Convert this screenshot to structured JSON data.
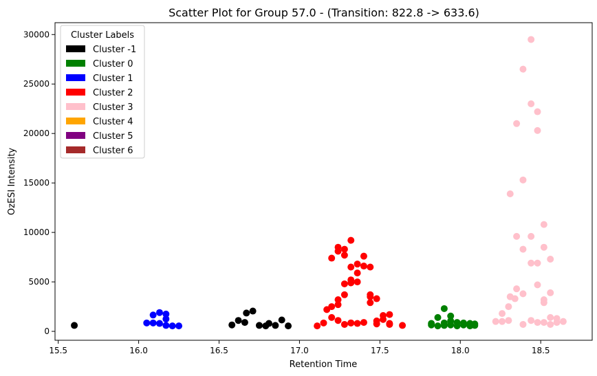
{
  "chart_data": {
    "type": "scatter",
    "title": "Scatter Plot for Group 57.0 -  (Transition: 822.8 -> 633.6)",
    "xlabel": "Retention Time",
    "ylabel": "OzESI Intensity",
    "xlim": [
      15.48,
      18.82
    ],
    "ylim": [
      -900,
      31200
    ],
    "xticks": [
      15.5,
      16.0,
      16.5,
      17.0,
      17.5,
      18.0,
      18.5
    ],
    "xtick_labels": [
      "15.5",
      "16.0",
      "16.5",
      "17.0",
      "17.5",
      "18.0",
      "18.5"
    ],
    "yticks": [
      0,
      5000,
      10000,
      15000,
      20000,
      25000,
      30000
    ],
    "ytick_labels": [
      "0",
      "5000",
      "10000",
      "15000",
      "20000",
      "25000",
      "30000"
    ],
    "grid": false,
    "legend": {
      "title": "Cluster Labels",
      "placement": "top-left"
    },
    "series": [
      {
        "name": "Cluster -1",
        "color": "#000000",
        "points": [
          [
            15.6,
            600
          ],
          [
            16.58,
            650
          ],
          [
            16.62,
            1100
          ],
          [
            16.66,
            900
          ],
          [
            16.67,
            1850
          ],
          [
            16.71,
            2050
          ],
          [
            16.75,
            600
          ],
          [
            16.79,
            550
          ],
          [
            16.81,
            800
          ],
          [
            16.85,
            600
          ],
          [
            16.89,
            1150
          ],
          [
            16.93,
            550
          ]
        ]
      },
      {
        "name": "Cluster 0",
        "color": "#008000",
        "points": [
          [
            17.82,
            650
          ],
          [
            17.82,
            800
          ],
          [
            17.86,
            550
          ],
          [
            17.86,
            1400
          ],
          [
            17.9,
            600
          ],
          [
            17.9,
            850
          ],
          [
            17.9,
            2300
          ],
          [
            17.94,
            650
          ],
          [
            17.94,
            1050
          ],
          [
            17.94,
            1550
          ],
          [
            17.98,
            550
          ],
          [
            17.98,
            900
          ],
          [
            18.02,
            650
          ],
          [
            18.02,
            850
          ],
          [
            18.06,
            550
          ],
          [
            18.06,
            800
          ],
          [
            18.09,
            600
          ],
          [
            18.09,
            750
          ]
        ]
      },
      {
        "name": "Cluster 1",
        "color": "#0000ff",
        "points": [
          [
            16.05,
            850
          ],
          [
            16.09,
            850
          ],
          [
            16.09,
            1650
          ],
          [
            16.13,
            800
          ],
          [
            16.13,
            1900
          ],
          [
            16.17,
            600
          ],
          [
            16.17,
            1250
          ],
          [
            16.17,
            1750
          ],
          [
            16.21,
            550
          ],
          [
            16.25,
            550
          ]
        ]
      },
      {
        "name": "Cluster 2",
        "color": "#ff0000",
        "points": [
          [
            17.11,
            550
          ],
          [
            17.15,
            850
          ],
          [
            17.17,
            2200
          ],
          [
            17.2,
            2500
          ],
          [
            17.2,
            7400
          ],
          [
            17.2,
            1400
          ],
          [
            17.24,
            1100
          ],
          [
            17.24,
            2700
          ],
          [
            17.24,
            3200
          ],
          [
            17.24,
            8100
          ],
          [
            17.24,
            8500
          ],
          [
            17.28,
            700
          ],
          [
            17.28,
            3700
          ],
          [
            17.28,
            4800
          ],
          [
            17.28,
            7700
          ],
          [
            17.28,
            8300
          ],
          [
            17.32,
            850
          ],
          [
            17.32,
            4900
          ],
          [
            17.32,
            5200
          ],
          [
            17.32,
            6500
          ],
          [
            17.32,
            9200
          ],
          [
            17.36,
            800
          ],
          [
            17.36,
            5000
          ],
          [
            17.36,
            5900
          ],
          [
            17.36,
            6800
          ],
          [
            17.4,
            900
          ],
          [
            17.4,
            6600
          ],
          [
            17.4,
            7600
          ],
          [
            17.44,
            2900
          ],
          [
            17.44,
            3500
          ],
          [
            17.44,
            3700
          ],
          [
            17.44,
            6500
          ],
          [
            17.48,
            750
          ],
          [
            17.48,
            1050
          ],
          [
            17.48,
            3300
          ],
          [
            17.52,
            1200
          ],
          [
            17.52,
            1600
          ],
          [
            17.56,
            700
          ],
          [
            17.56,
            800
          ],
          [
            17.56,
            1700
          ],
          [
            17.64,
            600
          ],
          [
            17.32,
            850
          ]
        ]
      },
      {
        "name": "Cluster 3",
        "color": "#ffc0cb",
        "points": [
          [
            18.22,
            1000
          ],
          [
            18.26,
            1000
          ],
          [
            18.26,
            1800
          ],
          [
            18.3,
            1100
          ],
          [
            18.3,
            2500
          ],
          [
            18.31,
            3500
          ],
          [
            18.31,
            13900
          ],
          [
            18.34,
            3300
          ],
          [
            18.35,
            4300
          ],
          [
            18.35,
            9600
          ],
          [
            18.35,
            21000
          ],
          [
            18.39,
            700
          ],
          [
            18.39,
            3800
          ],
          [
            18.39,
            8300
          ],
          [
            18.39,
            15300
          ],
          [
            18.39,
            26500
          ],
          [
            18.44,
            1100
          ],
          [
            18.44,
            6900
          ],
          [
            18.44,
            9600
          ],
          [
            18.44,
            23000
          ],
          [
            18.44,
            29500
          ],
          [
            18.48,
            900
          ],
          [
            18.48,
            4700
          ],
          [
            18.48,
            6900
          ],
          [
            18.48,
            20300
          ],
          [
            18.48,
            22200
          ],
          [
            18.52,
            900
          ],
          [
            18.52,
            2900
          ],
          [
            18.52,
            3200
          ],
          [
            18.52,
            8500
          ],
          [
            18.52,
            10800
          ],
          [
            18.56,
            700
          ],
          [
            18.56,
            1400
          ],
          [
            18.56,
            3900
          ],
          [
            18.56,
            7300
          ],
          [
            18.6,
            900
          ],
          [
            18.6,
            1300
          ],
          [
            18.64,
            1000
          ]
        ]
      },
      {
        "name": "Cluster 4",
        "color": "#ffa500",
        "points": []
      },
      {
        "name": "Cluster 5",
        "color": "#800080",
        "points": []
      },
      {
        "name": "Cluster 6",
        "color": "#a52a2a",
        "points": []
      }
    ]
  }
}
